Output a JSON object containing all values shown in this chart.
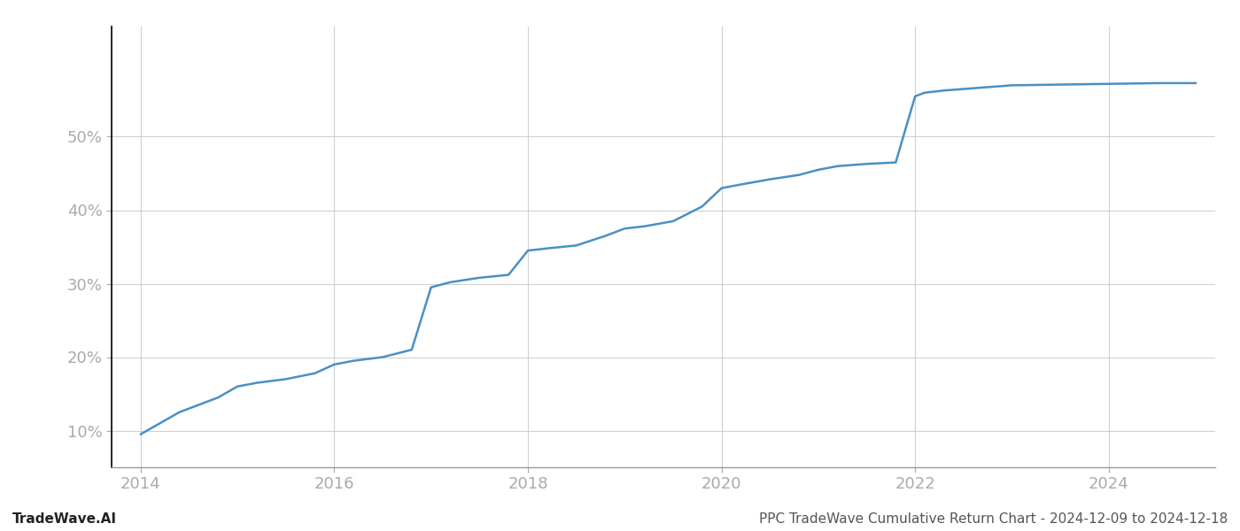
{
  "title": "PPC TradeWave Cumulative Return Chart - 2024-12-09 to 2024-12-18",
  "watermark": "TradeWave.AI",
  "line_color": "#4a90c4",
  "line_width": 1.8,
  "background_color": "#ffffff",
  "grid_color": "#cccccc",
  "x_data": [
    2014.0,
    2014.2,
    2014.4,
    2014.6,
    2014.8,
    2015.0,
    2015.2,
    2015.5,
    2015.8,
    2016.0,
    2016.2,
    2016.5,
    2016.8,
    2017.0,
    2017.2,
    2017.5,
    2017.8,
    2018.0,
    2018.2,
    2018.5,
    2018.8,
    2019.0,
    2019.2,
    2019.5,
    2019.8,
    2020.0,
    2020.2,
    2020.5,
    2020.8,
    2021.0,
    2021.2,
    2021.5,
    2021.8,
    2022.0,
    2022.1,
    2022.3,
    2022.5,
    2022.8,
    2023.0,
    2023.5,
    2024.0,
    2024.5,
    2024.9
  ],
  "y_data": [
    9.5,
    11.0,
    12.5,
    13.5,
    14.5,
    16.0,
    16.5,
    17.0,
    17.8,
    19.0,
    19.5,
    20.0,
    21.0,
    29.5,
    30.2,
    30.8,
    31.2,
    34.5,
    34.8,
    35.2,
    36.5,
    37.5,
    37.8,
    38.5,
    40.5,
    43.0,
    43.5,
    44.2,
    44.8,
    45.5,
    46.0,
    46.3,
    46.5,
    55.5,
    56.0,
    56.3,
    56.5,
    56.8,
    57.0,
    57.1,
    57.2,
    57.3,
    57.3
  ],
  "xlim": [
    2013.7,
    2025.1
  ],
  "ylim": [
    5,
    65
  ],
  "xticks": [
    2014,
    2016,
    2018,
    2020,
    2022,
    2024
  ],
  "yticks": [
    10,
    20,
    30,
    40,
    50
  ],
  "ytick_labels": [
    "10%",
    "20%",
    "30%",
    "40%",
    "50%"
  ],
  "tick_color": "#aaaaaa",
  "tick_fontsize": 13,
  "footer_fontsize": 11,
  "left_spine_color": "#000000",
  "bottom_spine_color": "#999999"
}
